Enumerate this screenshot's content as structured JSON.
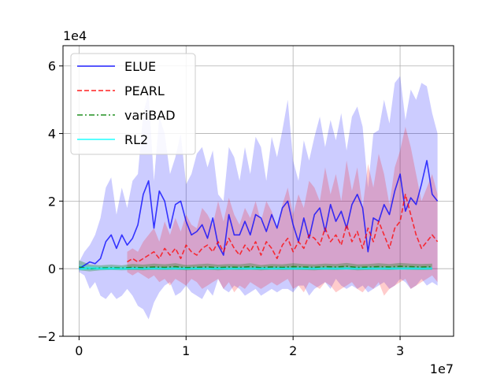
{
  "chart_data": {
    "type": "line",
    "title": "",
    "xlabel": "",
    "ylabel": "",
    "x_multiplier_label": "1e7",
    "y_multiplier_label": "1e4",
    "xlim": [
      -0.15,
      3.5
    ],
    "ylim": [
      -2.0,
      6.6
    ],
    "x_ticks": [
      0,
      1,
      2,
      3
    ],
    "x_tick_labels": [
      "0",
      "1",
      "2",
      "3"
    ],
    "y_ticks": [
      -2,
      0,
      2,
      4,
      6
    ],
    "y_tick_labels": [
      "−2",
      "0",
      "2",
      "4",
      "6"
    ],
    "grid": true,
    "legend_position": "top-left",
    "series": [
      {
        "name": "ELUE",
        "color": "#0000ff",
        "line_style": "solid",
        "x": [
          0.0,
          0.05,
          0.1,
          0.15,
          0.2,
          0.25,
          0.3,
          0.35,
          0.4,
          0.45,
          0.5,
          0.55,
          0.6,
          0.65,
          0.7,
          0.75,
          0.8,
          0.85,
          0.9,
          0.95,
          1.0,
          1.05,
          1.1,
          1.15,
          1.2,
          1.25,
          1.3,
          1.35,
          1.4,
          1.45,
          1.5,
          1.55,
          1.6,
          1.65,
          1.7,
          1.75,
          1.8,
          1.85,
          1.9,
          1.95,
          2.0,
          2.05,
          2.1,
          2.15,
          2.2,
          2.25,
          2.3,
          2.35,
          2.4,
          2.45,
          2.5,
          2.55,
          2.6,
          2.65,
          2.7,
          2.75,
          2.8,
          2.85,
          2.9,
          2.95,
          3.0,
          3.05,
          3.1,
          3.15,
          3.2,
          3.25,
          3.3,
          3.35
        ],
        "y": [
          0.0,
          0.1,
          0.2,
          0.15,
          0.3,
          0.8,
          1.0,
          0.6,
          1.0,
          0.7,
          0.9,
          1.3,
          2.2,
          2.6,
          1.2,
          2.3,
          2.0,
          1.2,
          1.9,
          2.0,
          1.4,
          1.0,
          1.1,
          1.3,
          0.9,
          1.5,
          0.7,
          0.4,
          1.6,
          1.0,
          1.0,
          1.4,
          1.0,
          1.6,
          1.5,
          1.1,
          1.6,
          1.2,
          1.8,
          2.0,
          1.3,
          0.8,
          1.5,
          0.9,
          1.6,
          1.8,
          1.1,
          1.9,
          1.4,
          1.7,
          1.2,
          1.9,
          2.2,
          1.8,
          0.5,
          1.5,
          1.4,
          1.9,
          1.6,
          2.3,
          2.8,
          1.7,
          2.1,
          1.9,
          2.5,
          3.2,
          2.2,
          2.0
        ],
        "y_lower": [
          -0.1,
          -0.2,
          -0.6,
          -0.4,
          -0.8,
          -0.9,
          -0.7,
          -0.9,
          -0.8,
          -0.6,
          -0.8,
          -1.1,
          -1.2,
          -1.5,
          -1.0,
          -0.7,
          -0.5,
          -0.4,
          -0.8,
          -0.7,
          -0.5,
          -0.7,
          -0.8,
          -0.9,
          -0.6,
          -0.8,
          -0.3,
          -0.6,
          -0.7,
          -0.5,
          -0.6,
          -0.8,
          -0.7,
          -0.6,
          -0.8,
          -0.7,
          -0.6,
          -0.7,
          -0.6,
          -0.6,
          -0.7,
          -0.5,
          -0.5,
          -0.8,
          -0.6,
          -0.5,
          -0.4,
          -0.6,
          -0.3,
          -0.5,
          -0.6,
          -0.5,
          -0.6,
          -0.5,
          -0.7,
          -0.6,
          -0.5,
          -0.4,
          -0.6,
          -0.5,
          -0.3,
          -0.4,
          -0.6,
          -0.5,
          -0.3,
          -0.5,
          -0.4,
          -0.5
        ],
        "y_upper": [
          0.2,
          0.5,
          0.7,
          1.0,
          1.5,
          2.4,
          2.7,
          1.6,
          2.4,
          1.8,
          2.6,
          2.8,
          4.6,
          5.2,
          2.6,
          4.5,
          4.0,
          2.8,
          3.3,
          4.0,
          2.5,
          2.8,
          3.4,
          3.6,
          3.0,
          3.5,
          2.2,
          2.0,
          3.6,
          3.3,
          2.6,
          3.6,
          2.8,
          3.9,
          3.6,
          2.6,
          3.9,
          3.3,
          4.1,
          5.0,
          3.2,
          2.6,
          3.8,
          3.2,
          3.9,
          4.5,
          3.6,
          4.4,
          3.8,
          4.6,
          3.5,
          4.5,
          4.8,
          4.2,
          2.4,
          4.0,
          4.1,
          5.0,
          4.3,
          5.5,
          5.7,
          4.4,
          5.3,
          5.0,
          5.5,
          5.4,
          4.6,
          4.0
        ]
      },
      {
        "name": "PEARL",
        "color": "#ff0000",
        "line_style": "dashed",
        "x": [
          0.45,
          0.5,
          0.55,
          0.6,
          0.65,
          0.7,
          0.75,
          0.8,
          0.85,
          0.9,
          0.95,
          1.0,
          1.05,
          1.1,
          1.15,
          1.2,
          1.25,
          1.3,
          1.35,
          1.4,
          1.45,
          1.5,
          1.55,
          1.6,
          1.65,
          1.7,
          1.75,
          1.8,
          1.85,
          1.9,
          1.95,
          2.0,
          2.05,
          2.1,
          2.15,
          2.2,
          2.25,
          2.3,
          2.35,
          2.4,
          2.45,
          2.5,
          2.55,
          2.6,
          2.65,
          2.7,
          2.75,
          2.8,
          2.85,
          2.9,
          2.95,
          3.0,
          3.05,
          3.1,
          3.15,
          3.2,
          3.25,
          3.3,
          3.35
        ],
        "y": [
          0.2,
          0.3,
          0.2,
          0.3,
          0.4,
          0.5,
          0.3,
          0.6,
          0.4,
          0.6,
          0.3,
          0.7,
          0.5,
          0.4,
          0.6,
          0.7,
          0.5,
          0.8,
          0.5,
          0.9,
          0.6,
          0.4,
          0.7,
          0.5,
          0.8,
          0.4,
          0.8,
          0.6,
          0.3,
          0.7,
          0.9,
          0.5,
          0.8,
          0.6,
          1.0,
          0.9,
          0.7,
          1.2,
          0.8,
          1.0,
          0.7,
          1.3,
          0.8,
          1.1,
          0.6,
          1.2,
          0.8,
          1.4,
          1.0,
          0.6,
          1.2,
          1.4,
          2.2,
          1.6,
          1.0,
          0.6,
          0.8,
          1.0,
          0.8
        ],
        "y_lower": [
          -0.1,
          -0.2,
          -0.1,
          -0.2,
          -0.3,
          -0.2,
          -0.4,
          -0.3,
          -0.5,
          -0.3,
          -0.4,
          -0.5,
          -0.3,
          -0.4,
          -0.6,
          -0.5,
          -0.4,
          -0.3,
          -0.6,
          -0.4,
          -0.7,
          -0.5,
          -0.6,
          -0.4,
          -0.5,
          -0.6,
          -0.5,
          -0.4,
          -0.5,
          -0.4,
          -0.3,
          -0.6,
          -0.5,
          -0.7,
          -0.4,
          -0.5,
          -0.6,
          -0.4,
          -0.5,
          -0.7,
          -0.6,
          -0.5,
          -0.4,
          -0.6,
          -0.7,
          -0.5,
          -0.6,
          -0.4,
          -0.8,
          -0.6,
          -0.5,
          -0.4,
          -0.3,
          -0.6,
          -0.5,
          -0.4,
          -0.3,
          -0.2,
          -0.4
        ],
        "y_upper": [
          0.5,
          0.6,
          0.5,
          0.8,
          1.0,
          1.2,
          0.8,
          1.4,
          1.0,
          1.5,
          1.1,
          1.6,
          1.3,
          1.2,
          1.8,
          1.6,
          1.3,
          2.0,
          1.4,
          2.1,
          1.6,
          1.3,
          1.8,
          1.5,
          2.0,
          1.4,
          2.0,
          1.7,
          1.2,
          1.9,
          2.4,
          1.6,
          2.2,
          1.8,
          2.6,
          2.4,
          2.0,
          3.0,
          2.2,
          2.8,
          2.0,
          3.2,
          2.3,
          3.0,
          1.8,
          3.1,
          2.4,
          3.4,
          2.8,
          1.9,
          3.0,
          3.5,
          4.2,
          3.6,
          2.8,
          2.0,
          2.4,
          2.8,
          2.2
        ]
      },
      {
        "name": "variBAD",
        "color": "#008000",
        "line_style": "dashdot",
        "x": [
          0.0,
          0.1,
          0.2,
          0.3,
          0.4,
          0.5,
          0.6,
          0.7,
          0.8,
          0.9,
          1.0,
          1.1,
          1.2,
          1.3,
          1.4,
          1.5,
          1.6,
          1.7,
          1.8,
          1.9,
          2.0,
          2.1,
          2.2,
          2.3,
          2.4,
          2.5,
          2.6,
          2.7,
          2.8,
          2.9,
          3.0,
          3.1,
          3.2,
          3.3
        ],
        "y": [
          0.05,
          0.0,
          0.02,
          0.03,
          0.02,
          0.04,
          0.03,
          0.05,
          0.04,
          0.06,
          0.03,
          0.04,
          0.05,
          0.03,
          0.05,
          0.04,
          0.06,
          0.03,
          0.05,
          0.04,
          0.06,
          0.05,
          0.04,
          0.06,
          0.05,
          0.07,
          0.04,
          0.05,
          0.06,
          0.05,
          0.07,
          0.06,
          0.05,
          0.06
        ],
        "y_lower": [
          -0.05,
          -0.08,
          -0.05,
          -0.04,
          -0.05,
          -0.04,
          -0.05,
          -0.03,
          -0.04,
          -0.03,
          -0.05,
          -0.04,
          -0.03,
          -0.05,
          -0.03,
          -0.04,
          -0.03,
          -0.05,
          -0.03,
          -0.04,
          -0.03,
          -0.04,
          -0.05,
          -0.03,
          -0.04,
          -0.02,
          -0.05,
          -0.04,
          -0.03,
          -0.04,
          -0.02,
          -0.03,
          -0.04,
          -0.03
        ],
        "y_upper": [
          0.25,
          0.12,
          0.1,
          0.12,
          0.1,
          0.14,
          0.12,
          0.15,
          0.13,
          0.16,
          0.11,
          0.13,
          0.15,
          0.12,
          0.14,
          0.13,
          0.16,
          0.11,
          0.14,
          0.13,
          0.16,
          0.14,
          0.13,
          0.15,
          0.14,
          0.17,
          0.13,
          0.14,
          0.16,
          0.14,
          0.17,
          0.15,
          0.14,
          0.15
        ]
      },
      {
        "name": "RL2",
        "color": "#00ffff",
        "line_style": "solid",
        "x": [
          0.0,
          0.1,
          0.2,
          0.3,
          0.4,
          0.5,
          0.6,
          0.7,
          0.8,
          0.9,
          1.0,
          1.1,
          1.2,
          1.3,
          1.4,
          1.5,
          1.6,
          1.7,
          1.8,
          1.9,
          2.0,
          2.1,
          2.2,
          2.3,
          2.4,
          2.5,
          2.6,
          2.7,
          2.8,
          2.9,
          3.0,
          3.1,
          3.2,
          3.3
        ],
        "y": [
          0.0,
          0.02,
          0.0,
          0.01,
          0.0,
          0.01,
          0.0,
          0.01,
          0.0,
          0.01,
          0.0,
          0.01,
          0.0,
          0.01,
          0.0,
          0.01,
          0.0,
          0.01,
          0.0,
          0.01,
          0.0,
          0.01,
          0.0,
          0.01,
          0.0,
          0.01,
          0.0,
          0.01,
          0.0,
          0.01,
          0.0,
          0.01,
          0.0,
          0.01
        ],
        "y_lower": [
          -0.05,
          -0.04,
          -0.04,
          -0.04,
          -0.04,
          -0.04,
          -0.04,
          -0.04,
          -0.04,
          -0.04,
          -0.04,
          -0.04,
          -0.04,
          -0.04,
          -0.04,
          -0.04,
          -0.04,
          -0.04,
          -0.04,
          -0.04,
          -0.04,
          -0.04,
          -0.04,
          -0.04,
          -0.04,
          -0.04,
          -0.04,
          -0.04,
          -0.04,
          -0.04,
          -0.04,
          -0.04,
          -0.04,
          -0.04
        ],
        "y_upper": [
          0.12,
          0.08,
          0.06,
          0.06,
          0.06,
          0.06,
          0.06,
          0.06,
          0.06,
          0.06,
          0.06,
          0.06,
          0.06,
          0.06,
          0.06,
          0.06,
          0.06,
          0.06,
          0.06,
          0.06,
          0.06,
          0.06,
          0.06,
          0.06,
          0.06,
          0.06,
          0.06,
          0.06,
          0.06,
          0.06,
          0.06,
          0.06,
          0.06,
          0.06
        ]
      }
    ]
  }
}
